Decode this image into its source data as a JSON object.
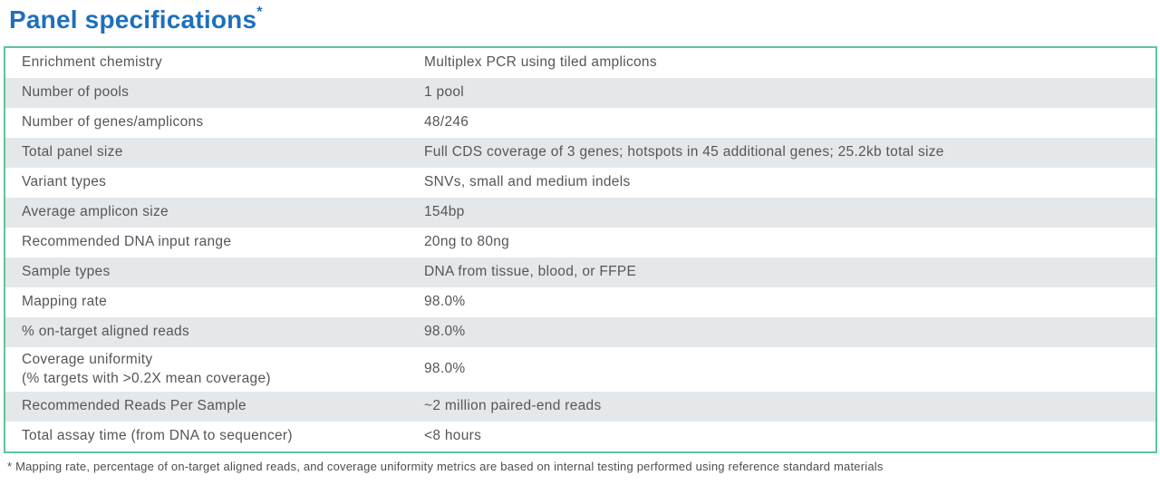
{
  "page": {
    "title": "Panel specifications",
    "title_asterisk": "*",
    "footnote": "* Mapping rate, percentage of on-target aligned reads, and coverage uniformity metrics are based on internal testing performed using reference standard materials"
  },
  "colors": {
    "title_blue": "#1e70bd",
    "table_border_green": "#5fc49a",
    "row_alt_gray": "#e5e8ea",
    "text_gray": "#54565a"
  },
  "table": {
    "rows": [
      {
        "label": "Enrichment chemistry",
        "value": "Multiplex PCR using tiled amplicons"
      },
      {
        "label": "Number of pools",
        "value": "1 pool"
      },
      {
        "label": "Number of genes/amplicons",
        "value": "48/246"
      },
      {
        "label": "Total panel size",
        "value": "Full CDS coverage of 3 genes; hotspots in 45 additional genes; 25.2kb total size"
      },
      {
        "label": "Variant types",
        "value": "SNVs, small and medium indels"
      },
      {
        "label": "Average amplicon size",
        "value": "154bp"
      },
      {
        "label": "Recommended DNA input range",
        "value": "20ng to 80ng"
      },
      {
        "label": "Sample types",
        "value": "DNA from tissue, blood, or FFPE"
      },
      {
        "label": "Mapping rate",
        "value": "98.0%"
      },
      {
        "label": "% on-target aligned reads",
        "value": "98.0%"
      },
      {
        "label": "Coverage uniformity",
        "label2": "(% targets with >0.2X mean coverage)",
        "value": "98.0%"
      },
      {
        "label": "Recommended Reads Per Sample",
        "value": "~2 million paired-end reads"
      },
      {
        "label": "Total assay time (from DNA to sequencer)",
        "value": "<8 hours"
      }
    ]
  }
}
